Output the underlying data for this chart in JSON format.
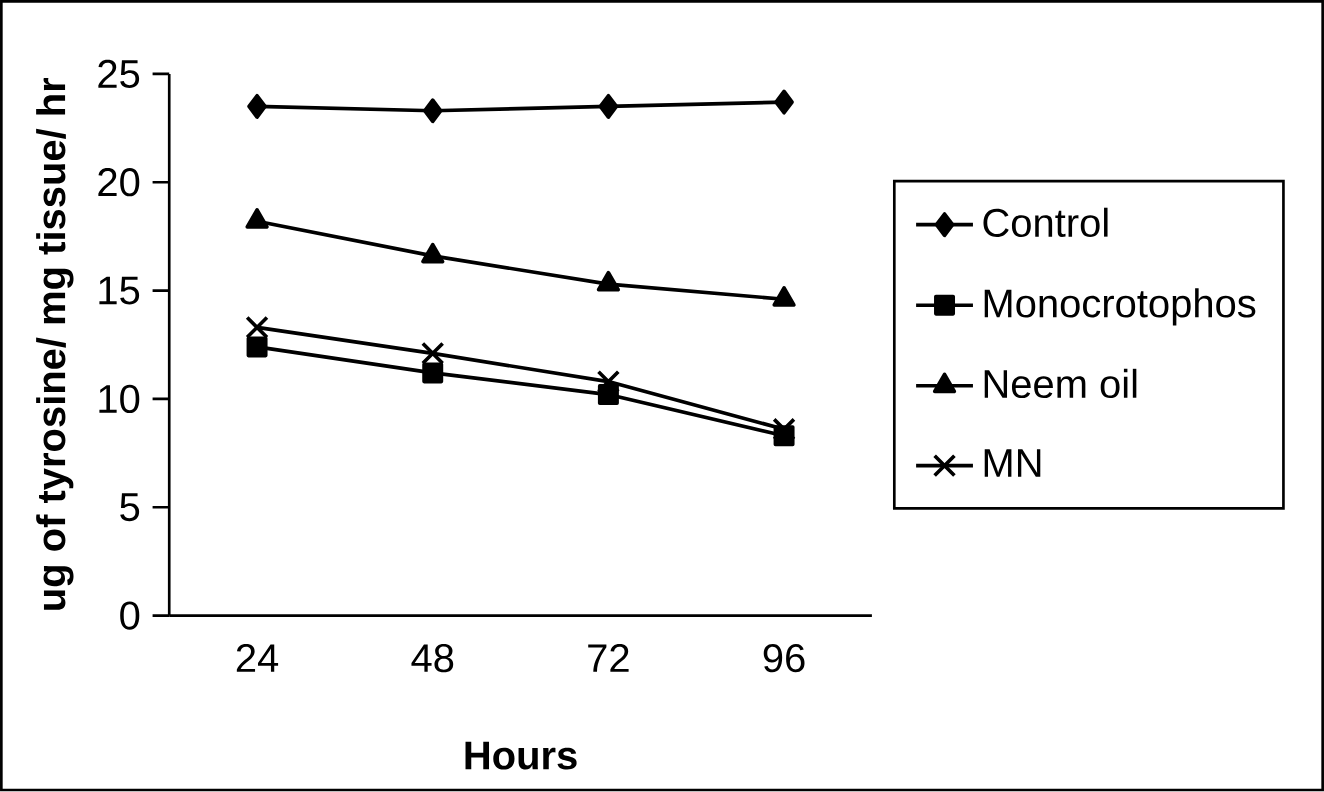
{
  "chart_data": {
    "type": "line",
    "xlabel": "Hours",
    "ylabel": "ug of tyrosine/ mg tissue/ hr",
    "categories": [
      "24",
      "48",
      "72",
      "96"
    ],
    "ylim": [
      0,
      25
    ],
    "yticks": [
      0,
      5,
      10,
      15,
      20,
      25
    ],
    "legend": "right",
    "grid": false,
    "series": [
      {
        "name": "Control",
        "color": "#000000",
        "marker": "diamond",
        "values": [
          23.5,
          23.3,
          23.5,
          23.7
        ]
      },
      {
        "name": "Monocrotophos",
        "color": "#000000",
        "marker": "square",
        "values": [
          12.4,
          11.2,
          10.2,
          8.3
        ]
      },
      {
        "name": "Neem oil",
        "color": "#000000",
        "marker": "triangle",
        "values": [
          18.2,
          16.6,
          15.3,
          14.6
        ]
      },
      {
        "name": "MN",
        "color": "#000000",
        "marker": "cross",
        "values": [
          13.3,
          12.1,
          10.8,
          8.6
        ]
      }
    ]
  }
}
